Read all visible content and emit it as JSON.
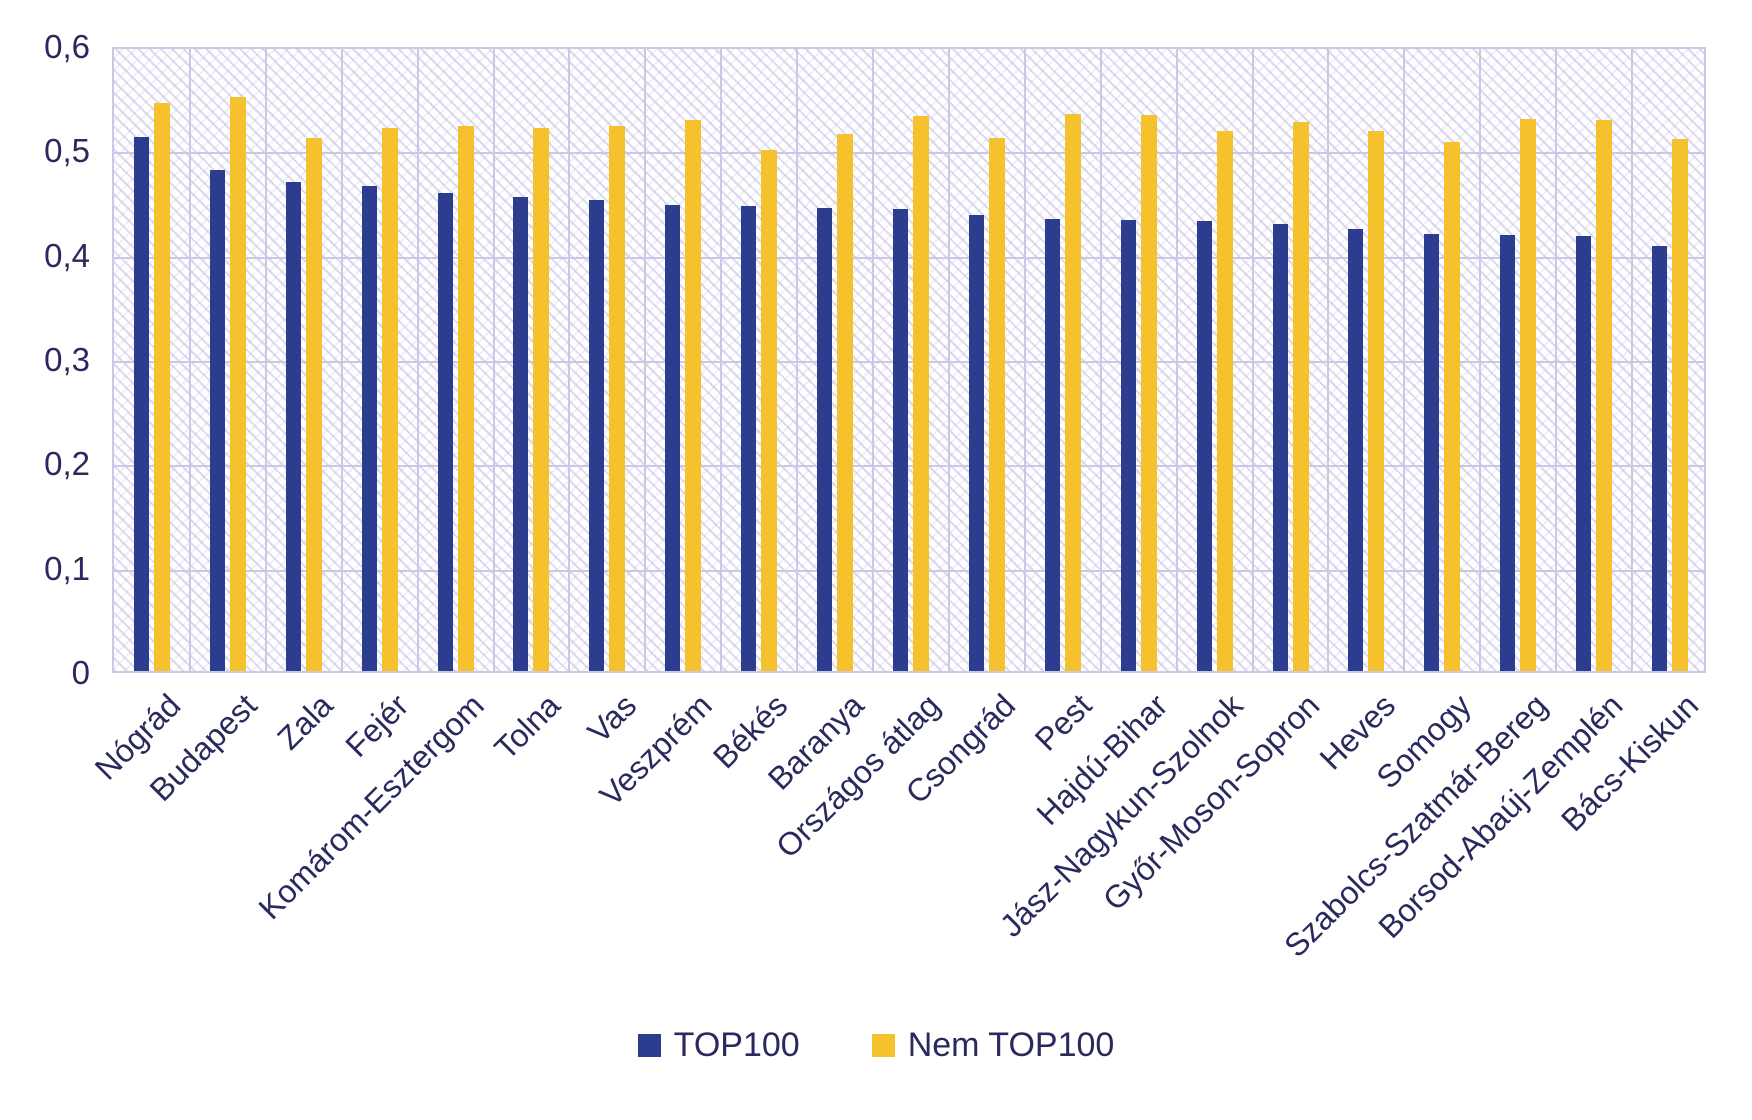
{
  "chart_data": {
    "type": "bar",
    "title": "",
    "xlabel": "",
    "ylabel": "",
    "categories": [
      "Nógrád",
      "Budapest",
      "Zala",
      "Fejér",
      "Komárom-Esztergom",
      "Tolna",
      "Vas",
      "Veszprém",
      "Békés",
      "Baranya",
      "Országos átlag",
      "Csongrád",
      "Pest",
      "Hajdú-Bihar",
      "Jász-Nagykun-Szolnok",
      "Győr-Moson-Sopron",
      "Heves",
      "Somogy",
      "Szabolcs-Szatmár-Bereg",
      "Borsod-Abaúj-Zemplén",
      "Bács-Kiskun"
    ],
    "series": [
      {
        "name": "TOP100",
        "color": "#2c3d8f",
        "values": [
          0.512,
          0.48,
          0.469,
          0.465,
          0.458,
          0.454,
          0.451,
          0.447,
          0.446,
          0.444,
          0.443,
          0.437,
          0.433,
          0.432,
          0.431,
          0.428,
          0.424,
          0.419,
          0.418,
          0.417,
          0.407
        ]
      },
      {
        "name": "Nem TOP100",
        "color": "#f5c22e",
        "values": [
          0.544,
          0.55,
          0.511,
          0.52,
          0.522,
          0.52,
          0.522,
          0.528,
          0.499,
          0.515,
          0.532,
          0.511,
          0.534,
          0.533,
          0.518,
          0.526,
          0.518,
          0.507,
          0.529,
          0.528,
          0.51
        ]
      }
    ],
    "ylim": [
      0,
      0.6
    ],
    "yticks": [
      {
        "value": 0.0,
        "label": "0"
      },
      {
        "value": 0.1,
        "label": "0,1"
      },
      {
        "value": 0.2,
        "label": "0,2"
      },
      {
        "value": 0.3,
        "label": "0,3"
      },
      {
        "value": 0.4,
        "label": "0,4"
      },
      {
        "value": 0.5,
        "label": "0,5"
      },
      {
        "value": 0.6,
        "label": "0,6"
      }
    ],
    "decimal_separator": ",",
    "grid": true,
    "plot_background": "diagonal-hatch",
    "legend_position": "bottom",
    "text_color": "#29295e",
    "gridline_color": "#cbc8e5"
  }
}
